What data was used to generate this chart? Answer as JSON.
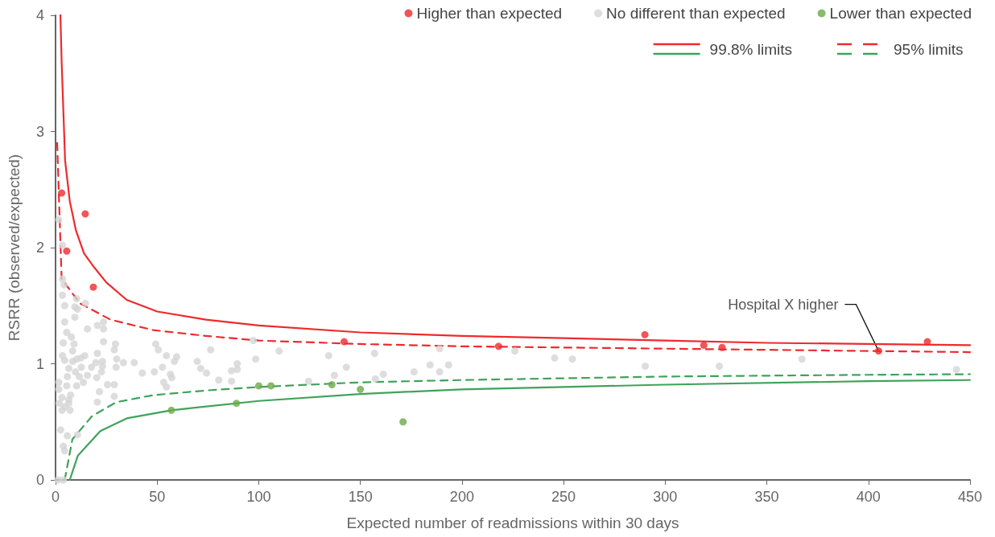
{
  "chart_data": {
    "type": "scatter",
    "xlabel": "Expected number of readmissions within 30 days",
    "ylabel": "RSRR (observed/expected)",
    "xlim": [
      0,
      450
    ],
    "xticks": [
      0,
      50,
      100,
      150,
      200,
      250,
      300,
      350,
      400,
      450
    ],
    "ylim": [
      0,
      4
    ],
    "yticks": [
      0,
      1,
      2,
      3,
      4
    ],
    "grid": false,
    "legend": "top right",
    "marker": "circle",
    "annotations": [
      {
        "text": "Hospital X higher",
        "x": 405,
        "y": 1.11
      }
    ],
    "series": [
      {
        "name": "Higher than expected",
        "color": "#ee2a2d",
        "x": [
          3,
          5.5,
          14.6,
          18.6,
          142,
          218,
          290,
          319,
          328,
          405,
          429
        ],
        "values": [
          2.47,
          1.97,
          2.29,
          1.66,
          1.19,
          1.15,
          1.25,
          1.16,
          1.14,
          1.11,
          1.19
        ]
      },
      {
        "name": "No different than expected",
        "color": "#d4d4d4",
        "x": [
          1.6,
          3.4,
          3.4,
          4.2,
          3.4,
          4.5,
          10.4,
          9.5,
          10.8,
          14.7,
          9.5,
          4.5,
          20.6,
          23.6,
          23.6,
          15.7,
          5.5,
          7.8,
          3.8,
          9.1,
          23.6,
          29.5,
          28.9,
          8.4,
          3.4,
          4.5,
          20.6,
          14.4,
          12.4,
          10.4,
          8.4,
          19.8,
          23.1,
          30.1,
          33.4,
          38.7,
          23.1,
          17.7,
          12.7,
          6.5,
          29.8,
          9.8,
          15.7,
          22.6,
          5.8,
          11.7,
          20.3,
          1.6,
          5.5,
          10.4,
          13.7,
          25.6,
          28.9,
          1.6,
          21.6,
          7.4,
          3.2,
          6.5,
          28.9,
          20.6,
          1.8,
          4.5,
          6.5,
          3.2,
          7.1,
          2.5,
          5.8,
          10.8,
          3.8,
          4.5,
          1.2,
          3.8,
          49.3,
          50.6,
          54.6,
          59.6,
          58.5,
          52.6,
          48.6,
          42.7,
          56.5,
          57.2,
          69.7,
          71.4,
          53.2,
          54.6,
          76.3,
          74.3,
          80.3,
          86.6,
          89.4,
          89.4,
          86.6,
          97.3,
          98.5,
          110,
          124.5,
          134.4,
          137.2,
          143.1,
          157,
          157.4,
          161.3,
          176.4,
          184.3,
          189,
          189,
          193.4,
          226,
          245.6,
          254.3,
          290.2,
          326.6,
          367.3,
          443.3
        ],
        "values": [
          2.24,
          2.02,
          1.73,
          1.68,
          1.59,
          1.5,
          1.56,
          1.49,
          1.47,
          1.52,
          1.4,
          1.36,
          1.33,
          1.36,
          1.3,
          1.3,
          1.27,
          1.23,
          1.18,
          1.17,
          1.19,
          1.17,
          1.12,
          1.11,
          1.07,
          1.03,
          1.09,
          1.07,
          1.05,
          1.04,
          1.02,
          1.01,
          1.02,
          1.04,
          1.01,
          1.01,
          0.98,
          0.97,
          0.97,
          0.96,
          0.97,
          0.93,
          0.9,
          0.93,
          0.89,
          0.89,
          0.88,
          0.84,
          0.81,
          0.81,
          0.84,
          0.82,
          0.82,
          0.78,
          0.76,
          0.73,
          0.71,
          0.69,
          0.72,
          0.67,
          0.66,
          0.63,
          0.66,
          0.6,
          0.6,
          0.43,
          0.38,
          0.39,
          0.29,
          0.25,
          0,
          0,
          1.17,
          1.12,
          1.07,
          1.06,
          1.02,
          0.97,
          0.93,
          0.92,
          0.91,
          0.88,
          1.02,
          0.96,
          0.84,
          0.8,
          1.12,
          0.92,
          0.86,
          0.94,
          0.95,
          1,
          0.85,
          1.2,
          1.04,
          1.11,
          0.85,
          1.07,
          0.9,
          0.97,
          1.09,
          0.87,
          0.91,
          0.93,
          0.99,
          0.93,
          1.13,
          0.99,
          1.11,
          1.05,
          1.04,
          0.98,
          0.98,
          1.04,
          0.95
        ]
      },
      {
        "name": "Lower than expected",
        "color": "#6aaa46",
        "x": [
          57,
          89,
          100,
          106,
          136,
          150,
          171
        ],
        "values": [
          0.6,
          0.66,
          0.81,
          0.81,
          0.82,
          0.78,
          0.5
        ]
      },
      {
        "name": "99.8% limits",
        "type": "line",
        "color": "#ee2a2d",
        "line_style": "solid",
        "marker": "none",
        "x": [
          2.4,
          3,
          4.7,
          7,
          10,
          14,
          19,
          25,
          35,
          50,
          74,
          100,
          150,
          200,
          250,
          300,
          350,
          400,
          450
        ],
        "values": [
          4,
          3.6,
          2.75,
          2.4,
          2.15,
          1.95,
          1.83,
          1.7,
          1.55,
          1.45,
          1.38,
          1.33,
          1.27,
          1.24,
          1.22,
          1.2,
          1.18,
          1.17,
          1.16
        ]
      },
      {
        "type": "line",
        "color": "#3fa35a",
        "line_style": "solid",
        "marker": "none",
        "x": [
          7,
          11,
          22,
          35,
          57,
          100,
          150,
          200,
          300,
          400,
          450
        ],
        "values": [
          0,
          0.21,
          0.42,
          0.53,
          0.6,
          0.68,
          0.74,
          0.78,
          0.82,
          0.85,
          0.86
        ]
      },
      {
        "name": "95% limits",
        "type": "line",
        "color": "#ee2a2d",
        "line_style": "dashed",
        "marker": "none",
        "x": [
          0.8,
          3,
          12,
          27,
          48,
          74,
          100,
          150,
          200,
          300,
          400,
          450
        ],
        "values": [
          2.9,
          1.73,
          1.52,
          1.38,
          1.29,
          1.24,
          1.2,
          1.17,
          1.15,
          1.13,
          1.11,
          1.1
        ]
      },
      {
        "type": "line",
        "color": "#3fa35a",
        "line_style": "dashed",
        "marker": "none",
        "x": [
          4.5,
          8.3,
          18,
          30,
          48,
          74,
          100,
          150,
          200,
          300,
          400,
          450
        ],
        "values": [
          0,
          0.35,
          0.55,
          0.67,
          0.73,
          0.77,
          0.8,
          0.84,
          0.86,
          0.89,
          0.905,
          0.91
        ]
      }
    ]
  }
}
